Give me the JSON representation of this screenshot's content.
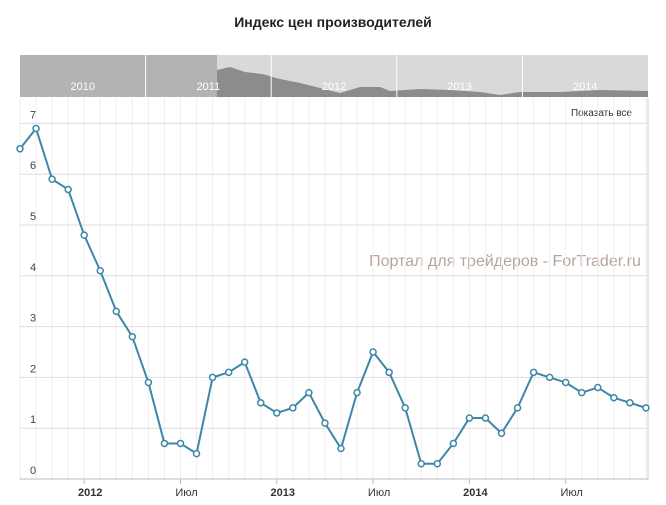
{
  "chart_data": {
    "type": "line",
    "title": "Индекс цен производителей",
    "categories": [
      null,
      null,
      null,
      null,
      "2012",
      null,
      null,
      null,
      null,
      null,
      "Июл",
      null,
      null,
      null,
      null,
      null,
      "2013",
      null,
      null,
      null,
      null,
      null,
      "Июл",
      null,
      null,
      null,
      null,
      null,
      "2014",
      null,
      null,
      null,
      null,
      null,
      "Июл",
      null,
      null,
      null,
      null,
      null
    ],
    "series": [
      {
        "name": null,
        "color": "#3d87a8",
        "values": [
          6.5,
          6.9,
          5.9,
          5.7,
          4.8,
          4.1,
          3.3,
          2.8,
          1.9,
          0.7,
          0.7,
          0.5,
          2.0,
          2.1,
          2.3,
          1.5,
          1.3,
          1.4,
          1.7,
          1.1,
          0.6,
          1.7,
          2.5,
          2.1,
          1.4,
          0.3,
          0.3,
          0.7,
          1.2,
          1.2,
          0.9,
          1.4,
          2.1,
          2.0,
          1.9,
          1.7,
          1.8,
          1.6,
          1.5,
          1.4
        ]
      }
    ],
    "ylim": [
      0,
      7.5
    ],
    "yticks": [
      0,
      1,
      2,
      3,
      4,
      5,
      6,
      7
    ],
    "grid": true
  },
  "navigator": {
    "labels": [
      "2010",
      "2011",
      "2012",
      "2013",
      "2014"
    ]
  },
  "reset_button": "Показать все",
  "watermark": "Портал для трейдеров - ForTrader.ru"
}
